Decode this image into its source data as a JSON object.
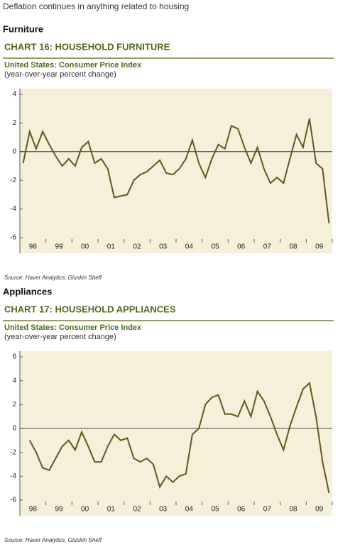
{
  "heading": "Deflation continues in anything related to housing",
  "chart_data": [
    {
      "type": "line",
      "section": "Furniture",
      "title": "CHART 16: HOUSEHOLD FURNITURE",
      "subtitle": "United States: Consumer Price Index",
      "y_label": "(year-over-year percent change)",
      "source": "Source: Haver Analytics, Gluskin Sheff",
      "categories": [
        null,
        "98",
        null,
        null,
        null,
        "99",
        null,
        null,
        null,
        "00",
        null,
        null,
        null,
        "01",
        null,
        null,
        null,
        "02",
        null,
        null,
        null,
        "03",
        null,
        null,
        null,
        "04",
        null,
        null,
        null,
        "05",
        null,
        null,
        null,
        "06",
        null,
        null,
        null,
        "07",
        null,
        null,
        null,
        "08",
        null,
        null,
        null,
        "09",
        null,
        null
      ],
      "values": [
        -0.8,
        1.4,
        0.2,
        1.4,
        0.5,
        -0.3,
        -1.0,
        -0.5,
        -1.0,
        0.3,
        0.7,
        -0.8,
        -0.5,
        -1.2,
        -3.2,
        -3.1,
        -3.0,
        -2.0,
        -1.6,
        -1.4,
        -1.0,
        -0.6,
        -1.5,
        -1.6,
        -1.2,
        -0.5,
        0.8,
        -0.8,
        -1.8,
        -0.5,
        0.5,
        0.2,
        1.8,
        1.6,
        0.3,
        -0.8,
        0.3,
        -1.2,
        -2.2,
        -1.8,
        -2.2,
        -0.5,
        1.2,
        0.3,
        2.3,
        -0.8,
        -1.2,
        -5.0
      ],
      "color": "#5c5a1c",
      "ylim": [
        -6,
        4
      ],
      "yticks": [
        -6,
        -4,
        -2,
        0,
        2,
        4
      ]
    },
    {
      "type": "line",
      "section": "Appliances",
      "title": "CHART 17: HOUSEHOLD APPLIANCES",
      "subtitle": "United States: Consumer Price Index",
      "y_label": "(year-over-year percent change)",
      "source": "Source: Haver Analytics, Gluskin Sheff",
      "categories": [
        null,
        "98",
        null,
        null,
        null,
        "99",
        null,
        null,
        null,
        "00",
        null,
        null,
        null,
        "01",
        null,
        null,
        null,
        "02",
        null,
        null,
        null,
        "03",
        null,
        null,
        null,
        "04",
        null,
        null,
        null,
        "05",
        null,
        null,
        null,
        "06",
        null,
        null,
        null,
        "07",
        null,
        null,
        null,
        "08",
        null,
        null,
        null,
        "09",
        null,
        null
      ],
      "values": [
        null,
        -1.0,
        -2.0,
        -3.3,
        -3.5,
        -2.5,
        -1.5,
        -1.0,
        -1.8,
        -0.3,
        -1.5,
        -2.8,
        -2.8,
        -1.5,
        -0.5,
        -1.0,
        -0.8,
        -2.5,
        -2.8,
        -2.5,
        -3.0,
        -4.9,
        -4.0,
        -4.5,
        -4.0,
        -3.8,
        -0.5,
        0.0,
        2.0,
        2.6,
        2.8,
        1.2,
        1.2,
        1.0,
        2.3,
        1.0,
        3.1,
        2.3,
        1.0,
        -0.5,
        -1.8,
        0.2,
        1.8,
        3.3,
        3.8,
        1.0,
        -2.8,
        -5.4
      ],
      "color": "#5c5a1c",
      "ylim": [
        -6,
        6
      ],
      "yticks": [
        -6,
        -4,
        -2,
        0,
        2,
        4,
        6
      ]
    }
  ]
}
